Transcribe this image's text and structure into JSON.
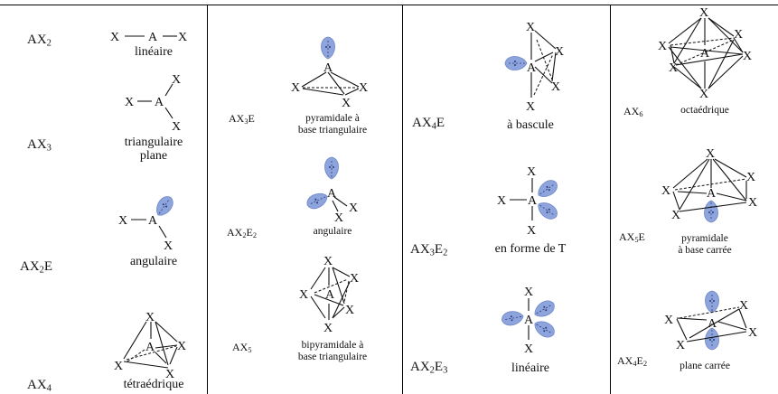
{
  "entries": [
    {
      "id": "ax2",
      "base": "AX",
      "s1": "2",
      "mid": "",
      "s2": "",
      "end": "",
      "name": "linéaire"
    },
    {
      "id": "ax3",
      "base": "AX",
      "s1": "3",
      "mid": "",
      "s2": "",
      "end": "",
      "name": "triangulaire\nplane"
    },
    {
      "id": "ax2e",
      "base": "AX",
      "s1": "2",
      "mid": "E",
      "s2": "",
      "end": "",
      "name": "angulaire"
    },
    {
      "id": "ax4",
      "base": "AX",
      "s1": "4",
      "mid": "",
      "s2": "",
      "end": "",
      "name": "tétraédrique"
    },
    {
      "id": "ax3e",
      "base": "AX",
      "s1": "3",
      "mid": "E",
      "s2": "",
      "end": "",
      "name": "pyramidale à\nbase triangulaire"
    },
    {
      "id": "ax2e2",
      "base": "AX",
      "s1": "2",
      "mid": "E",
      "s2": "2",
      "end": "",
      "name": "angulaire"
    },
    {
      "id": "ax5",
      "base": "AX",
      "s1": "5",
      "mid": "",
      "s2": "",
      "end": "",
      "name": "bipyramidale à\nbase triangulaire"
    },
    {
      "id": "ax4e",
      "base": "AX",
      "s1": "4",
      "mid": "E",
      "s2": "",
      "end": "",
      "name": "à bascule"
    },
    {
      "id": "ax3e2",
      "base": "AX",
      "s1": "3",
      "mid": "E",
      "s2": "2",
      "end": "",
      "name": "en forme de T"
    },
    {
      "id": "ax2e3",
      "base": "AX",
      "s1": "2",
      "mid": "E",
      "s2": "3",
      "end": "",
      "name": "linéaire"
    },
    {
      "id": "ax6",
      "base": "AX",
      "s1": "6",
      "mid": "",
      "s2": "",
      "end": "",
      "name": "octaédrique"
    },
    {
      "id": "ax5e",
      "base": "AX",
      "s1": "5",
      "mid": "E",
      "s2": "",
      "end": "",
      "name": "pyramidale\nà base carrée"
    },
    {
      "id": "ax4e2",
      "base": "AX",
      "s1": "4",
      "mid": "E",
      "s2": "2",
      "end": "",
      "name": "plane carrée"
    }
  ],
  "atoms": {
    "central": "A",
    "ligand": "X"
  },
  "colors": {
    "lone_pair": "#8ea4dc",
    "line": "#111111"
  }
}
